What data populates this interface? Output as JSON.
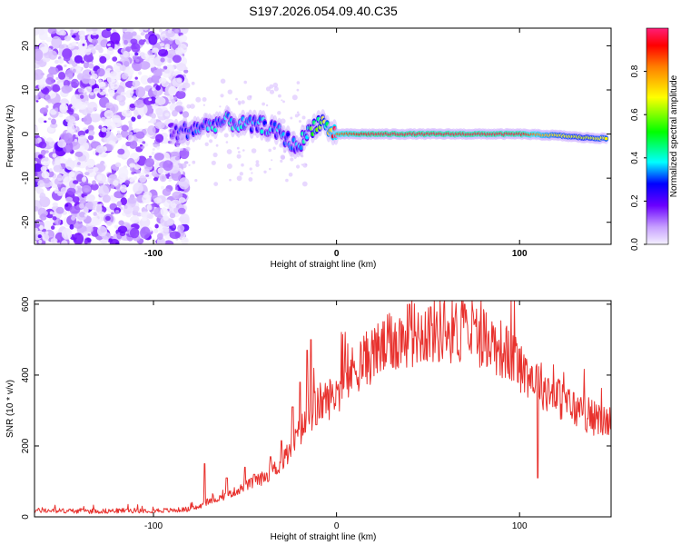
{
  "title": "S197.2026.054.09.40.C35",
  "chart_data": [
    {
      "type": "heatmap",
      "xlabel": "Height of straight line (km)",
      "ylabel": "Frequency (Hz)",
      "xlim": [
        -165,
        150
      ],
      "ylim": [
        -25,
        24
      ],
      "xticks": [
        -100,
        0,
        100
      ],
      "xtick_labels": [
        "-100",
        "0",
        "100"
      ],
      "yticks": [
        -20,
        -10,
        0,
        10,
        20
      ],
      "ytick_labels": [
        "-20",
        "-10",
        "0",
        "10",
        "20"
      ],
      "noise_region_km": [
        -165,
        -82
      ],
      "signal_track": {
        "x": [
          -90,
          -80,
          -70,
          -60,
          -50,
          -40,
          -30,
          -25,
          -22,
          -18,
          -12,
          -8,
          -4,
          0,
          20,
          60,
          100,
          120,
          135,
          148
        ],
        "freq": [
          0,
          1,
          2,
          3,
          2,
          2,
          0,
          -2,
          -3,
          -1,
          2,
          3,
          1,
          0,
          0,
          0,
          0,
          -0.3,
          -0.8,
          -1
        ],
        "amplitude": [
          0.25,
          0.3,
          0.35,
          0.35,
          0.35,
          0.35,
          0.35,
          0.35,
          0.35,
          0.4,
          0.5,
          0.6,
          0.75,
          0.85,
          0.95,
          0.95,
          0.95,
          0.7,
          0.65,
          0.7
        ]
      },
      "colorbar": {
        "label": "Normalized spectral amplitude",
        "range": [
          0,
          1
        ],
        "ticks": [
          0.0,
          0.2,
          0.4,
          0.6,
          0.8
        ],
        "tick_labels": [
          "0.0",
          "0.2",
          "0.4",
          "0.6",
          "0.8"
        ]
      }
    },
    {
      "type": "line",
      "xlabel": "Height of straight line (km)",
      "ylabel": "SNR (10 * v/v)",
      "xlim": [
        -165,
        150
      ],
      "ylim": [
        0,
        610
      ],
      "xticks": [
        -100,
        0,
        100
      ],
      "xtick_labels": [
        "-100",
        "0",
        "100"
      ],
      "yticks": [
        0,
        200,
        400,
        600
      ],
      "ytick_labels": [
        "0",
        "200",
        "400",
        "600"
      ],
      "series": [
        {
          "name": "SNR",
          "color": "#e8322e",
          "x": [
            -165,
            -150,
            -130,
            -110,
            -90,
            -80,
            -75,
            -70,
            -60,
            -50,
            -40,
            -30,
            -25,
            -20,
            -15,
            -10,
            -5,
            0,
            10,
            20,
            30,
            40,
            50,
            60,
            70,
            80,
            90,
            100,
            110,
            120,
            130,
            140,
            150
          ],
          "y": [
            18,
            17,
            16,
            18,
            18,
            22,
            28,
            42,
            60,
            85,
            110,
            150,
            190,
            240,
            280,
            320,
            330,
            350,
            420,
            460,
            490,
            515,
            525,
            525,
            522,
            510,
            475,
            430,
            380,
            340,
            305,
            280,
            265
          ],
          "spikes": [
            {
              "x": -72,
              "y": 150
            },
            {
              "x": -60,
              "y": 110
            },
            {
              "x": -50,
              "y": 140
            },
            {
              "x": -45,
              "y": 120
            },
            {
              "x": -36,
              "y": 170
            },
            {
              "x": -30,
              "y": 215
            },
            {
              "x": -24,
              "y": 310
            },
            {
              "x": -20,
              "y": 380
            },
            {
              "x": -16,
              "y": 470
            },
            {
              "x": -14,
              "y": 500
            },
            {
              "x": -11,
              "y": 260
            },
            {
              "x": 40,
              "y": 600
            },
            {
              "x": 70,
              "y": 600
            },
            {
              "x": 110,
              "y": 110
            }
          ]
        }
      ]
    }
  ]
}
